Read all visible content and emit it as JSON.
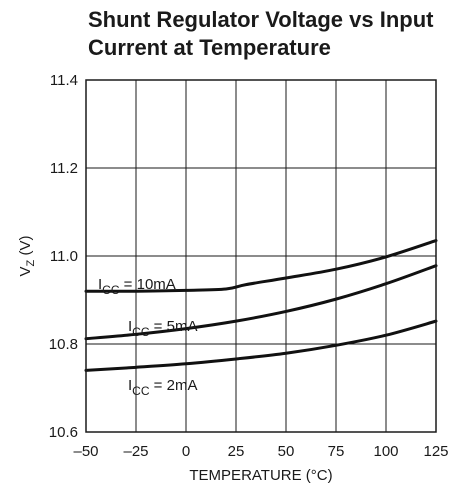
{
  "chart_data": {
    "type": "line",
    "title_lines": [
      "Shunt Regulator Voltage vs Input",
      "Current at Temperature"
    ],
    "xlabel": "TEMPERATURE (°C)",
    "ylabel": {
      "main": "V",
      "sub": "Z",
      "rest": " (V)"
    },
    "xlim": [
      -50,
      125
    ],
    "ylim": [
      10.6,
      11.4
    ],
    "xticks": [
      -50,
      -25,
      0,
      25,
      50,
      75,
      100,
      125
    ],
    "xtick_labels": [
      "–50",
      "–25",
      "0",
      "25",
      "50",
      "75",
      "100",
      "125"
    ],
    "yticks": [
      10.6,
      10.8,
      11.0,
      11.2,
      11.4
    ],
    "ytick_labels": [
      "10.6",
      "10.8",
      "11.0",
      "11.2",
      "11.4"
    ],
    "grid": true,
    "series": [
      {
        "label_main": "I",
        "label_sub": "CC",
        "label_rest": " = 10mA",
        "label_anchor": {
          "x": -44,
          "y": 10.925
        },
        "x": [
          -50,
          -25,
          0,
          20,
          30,
          50,
          75,
          100,
          125
        ],
        "y": [
          10.92,
          10.92,
          10.922,
          10.925,
          10.935,
          10.95,
          10.97,
          10.998,
          11.035
        ]
      },
      {
        "label_main": "I",
        "label_sub": "CC",
        "label_rest": " = 5mA",
        "label_anchor": {
          "x": -29,
          "y": 10.83
        },
        "x": [
          -50,
          -25,
          0,
          25,
          50,
          75,
          100,
          125
        ],
        "y": [
          10.812,
          10.822,
          10.835,
          10.852,
          10.874,
          10.902,
          10.937,
          10.978
        ]
      },
      {
        "label_main": "I",
        "label_sub": "CC",
        "label_rest": " = 2mA",
        "label_anchor": {
          "x": -29,
          "y": 10.695
        },
        "x": [
          -50,
          -25,
          0,
          25,
          50,
          75,
          100,
          125
        ],
        "y": [
          10.74,
          10.747,
          10.755,
          10.766,
          10.779,
          10.797,
          10.82,
          10.852
        ]
      }
    ]
  }
}
